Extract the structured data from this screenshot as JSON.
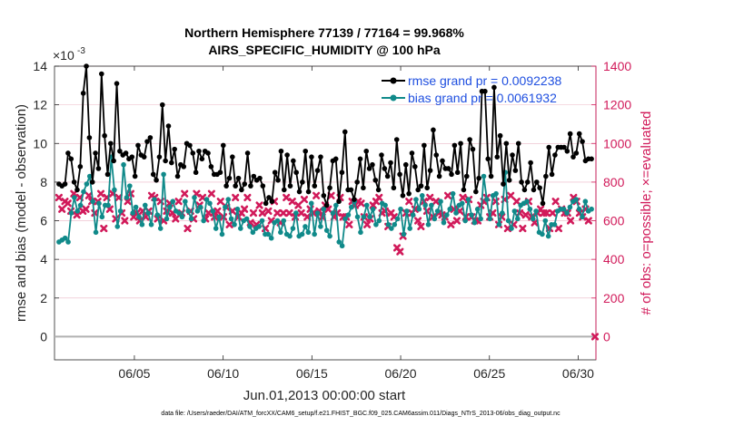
{
  "chart_data": {
    "type": "line",
    "title_line1": "Northern Hemisphere 77139 / 77164 = 99.968%",
    "title_line2": "AIRS_SPECIFIC_HUMIDITY @ 100 hPa",
    "exponent_label": "×10",
    "exponent_power": "-3",
    "ylabel_left": "rmse and bias (model - observation)",
    "ylabel_right": "# of obs: o=possible; ×=evaluated",
    "xlabel": "Jun.01,2013 00:00:00 start",
    "footnote": "data file: /Users/raeder/DAI/ATM_forcXX/CAM6_setup/f.e21.FHIST_BGC.f09_025.CAM6assim.011/Diags_NTrS_2013-06/obs_diag_output.nc",
    "x_range_days": [
      0.5,
      31.0
    ],
    "x_ticks": [
      {
        "value": 5,
        "label": "06/05"
      },
      {
        "value": 10,
        "label": "06/10"
      },
      {
        "value": 15,
        "label": "06/15"
      },
      {
        "value": 20,
        "label": "06/20"
      },
      {
        "value": 25,
        "label": "06/25"
      },
      {
        "value": 30,
        "label": "06/30"
      }
    ],
    "y_left_range": [
      -1.2,
      14
    ],
    "y_left_ticks": [
      "0",
      "2",
      "4",
      "6",
      "8",
      "10",
      "12",
      "14"
    ],
    "y_right_range": [
      -120,
      1400
    ],
    "y_right_ticks": [
      "0",
      "200",
      "400",
      "600",
      "800",
      "1000",
      "1200",
      "1400"
    ],
    "legend": [
      {
        "name": "rmse",
        "text": "rmse grand pr = 0.0092238"
      },
      {
        "name": "bias",
        "text": "bias grand pr = 0.0061932"
      }
    ],
    "colors": {
      "rmse": "#000000",
      "bias": "#108a8a",
      "obs": "#d11a5a",
      "legend_text": "#1f4fe0",
      "zero_line": "#b0b0b0",
      "grid": "#ebb6c6"
    },
    "series": [
      {
        "name": "rmse",
        "unit_scale": "1e-3",
        "values": [
          7.9,
          7.8,
          7.9,
          9.5,
          9.2,
          8.0,
          7.6,
          8.8,
          12.6,
          14.0,
          10.3,
          8.0,
          9.5,
          8.7,
          13.6,
          10.4,
          8.4,
          10.0,
          9.1,
          13.1,
          9.6,
          9.4,
          9.5,
          9.2,
          9.3,
          8.3,
          9.9,
          9.4,
          9.3,
          10.1,
          10.3,
          8.4,
          8.1,
          9.3,
          12.0,
          9.1,
          10.9,
          9.0,
          9.7,
          8.3,
          8.9,
          8.8,
          10.0,
          9.9,
          9.5,
          8.5,
          9.6,
          9.2,
          9.6,
          9.5,
          8.8,
          8.4,
          8.4,
          8.5,
          9.9,
          7.8,
          8.2,
          9.3,
          7.8,
          8.2,
          7.6,
          7.9,
          9.5,
          7.8,
          8.3,
          8.1,
          8.2,
          7.8,
          6.9,
          7.2,
          7.0,
          8.5,
          8.1,
          9.6,
          7.6,
          9.4,
          7.8,
          9.1,
          8.5,
          7.5,
          8.0,
          9.6,
          7.5,
          9.3,
          7.8,
          8.6,
          9.3,
          7.3,
          6.8,
          7.7,
          9.1,
          9.2,
          7.0,
          8.5,
          10.6,
          7.6,
          7.6,
          7.1,
          8.0,
          9.2,
          7.7,
          9.6,
          8.7,
          8.9,
          8.1,
          7.6,
          9.4,
          8.7,
          8.3,
          9.0,
          7.7,
          10.2,
          8.4,
          7.3,
          8.9,
          7.4,
          9.5,
          8.8,
          7.6,
          7.8,
          9.9,
          7.7,
          8.6,
          10.7,
          9.4,
          8.3,
          9.1,
          8.7,
          8.7,
          8.4,
          9.9,
          8.5,
          10.0,
          7.6,
          8.3,
          10.2,
          9.7,
          7.5,
          8.2,
          12.7,
          12.7,
          9.2,
          8.3,
          12.9,
          9.3,
          10.4,
          7.9,
          10.0,
          8.1,
          9.4,
          8.6,
          10.0,
          8.0,
          7.6,
          8.0,
          9.0,
          7.6,
          8.0,
          7.7,
          6.9,
          8.3,
          9.8,
          8.4,
          9.4,
          9.8,
          9.8,
          9.8,
          9.6,
          10.5,
          9.3,
          9.5,
          10.5,
          10.1,
          9.1,
          9.2,
          9.2
        ]
      },
      {
        "name": "bias",
        "unit_scale": "1e-3",
        "values": [
          4.9,
          5.0,
          5.1,
          4.9,
          6.4,
          7.2,
          6.5,
          6.8,
          7.5,
          7.9,
          8.3,
          7.0,
          5.4,
          6.9,
          6.2,
          6.8,
          6.8,
          9.3,
          7.6,
          5.7,
          6.5,
          8.9,
          7.2,
          7.8,
          6.4,
          6.7,
          6.2,
          5.8,
          6.8,
          6.4,
          5.8,
          7.1,
          6.3,
          5.6,
          8.4,
          6.1,
          6.7,
          7.0,
          6.5,
          6.4,
          6.2,
          7.0,
          6.5,
          6.1,
          7.2,
          6.5,
          6.7,
          6.0,
          7.1,
          6.9,
          6.5,
          5.6,
          6.2,
          5.3,
          6.7,
          7.1,
          6.1,
          5.8,
          6.6,
          5.6,
          6.0,
          6.1,
          5.7,
          5.4,
          5.6,
          5.7,
          6.0,
          5.3,
          5.3,
          5.1,
          5.9,
          6.0,
          5.4,
          6.0,
          5.3,
          5.2,
          5.6,
          6.4,
          5.2,
          5.3,
          5.7,
          5.4,
          6.9,
          5.3,
          6.4,
          5.7,
          6.6,
          5.5,
          5.2,
          6.4,
          6.8,
          4.9,
          4.7,
          6.1,
          6.3,
          6.7,
          7.0,
          6.2,
          5.4,
          6.2,
          6.8,
          6.2,
          6.6,
          5.8,
          6.0,
          6.9,
          6.8,
          5.8,
          5.6,
          5.8,
          6.1,
          6.6,
          5.3,
          6.5,
          5.6,
          6.3,
          7.1,
          6.6,
          7.3,
          6.8,
          5.8,
          6.8,
          6.1,
          6.5,
          7.0,
          5.9,
          6.3,
          6.6,
          7.4,
          6.4,
          6.8,
          6.9,
          6.0,
          7.1,
          6.3,
          5.9,
          6.6,
          6.1,
          8.3,
          7.1,
          6.1,
          7.3,
          7.4,
          5.8,
          6.4,
          8.5,
          6.0,
          5.6,
          6.5,
          6.1,
          6.8,
          6.9,
          7.0,
          6.6,
          6.1,
          6.5,
          5.4,
          5.3,
          6.0,
          5.2,
          5.8,
          5.8,
          6.5,
          6.6,
          6.6,
          6.4,
          6.7,
          7.0,
          7.1,
          6.6,
          6.2,
          7.0,
          6.5,
          6.6
        ]
      },
      {
        "name": "obs_evaluated",
        "unit": "count",
        "values": [
          720,
          660,
          700,
          690,
          650,
          740,
          630,
          720,
          650,
          660,
          730,
          700,
          640,
          700,
          740,
          560,
          720,
          660,
          740,
          610,
          720,
          640,
          600,
          700,
          740,
          620,
          640,
          600,
          650,
          620,
          650,
          730,
          720,
          610,
          700,
          600,
          650,
          690,
          640,
          610,
          700,
          640,
          740,
          560,
          650,
          610,
          740,
          680,
          720,
          610,
          640,
          740,
          620,
          650,
          700,
          620,
          670,
          580,
          650,
          720,
          620,
          640,
          660,
          720,
          590,
          640,
          580,
          680,
          640,
          560,
          650,
          600,
          700,
          640,
          590,
          640,
          720,
          640,
          700,
          620,
          680,
          640,
          710,
          620,
          660,
          640,
          730,
          650,
          620,
          680,
          660,
          730,
          620,
          640,
          720,
          620,
          620,
          580,
          700,
          680,
          700,
          690,
          620,
          580,
          610,
          680,
          700,
          720,
          640,
          650,
          570,
          640,
          620,
          460,
          440,
          520,
          640,
          700,
          640,
          660,
          600,
          570,
          700,
          650,
          720,
          620,
          700,
          640,
          630,
          620,
          730,
          580,
          660,
          600,
          650,
          720,
          620,
          710,
          620,
          600,
          600,
          680,
          700,
          720,
          620,
          640,
          700,
          580,
          620,
          710,
          560,
          730,
          580,
          700,
          640,
          560,
          630,
          700,
          620,
          590,
          640,
          660,
          640,
          640,
          560,
          640,
          700,
          560,
          660,
          640,
          640,
          600,
          720,
          700,
          640,
          620,
          660,
          600,
          0
        ]
      }
    ]
  }
}
